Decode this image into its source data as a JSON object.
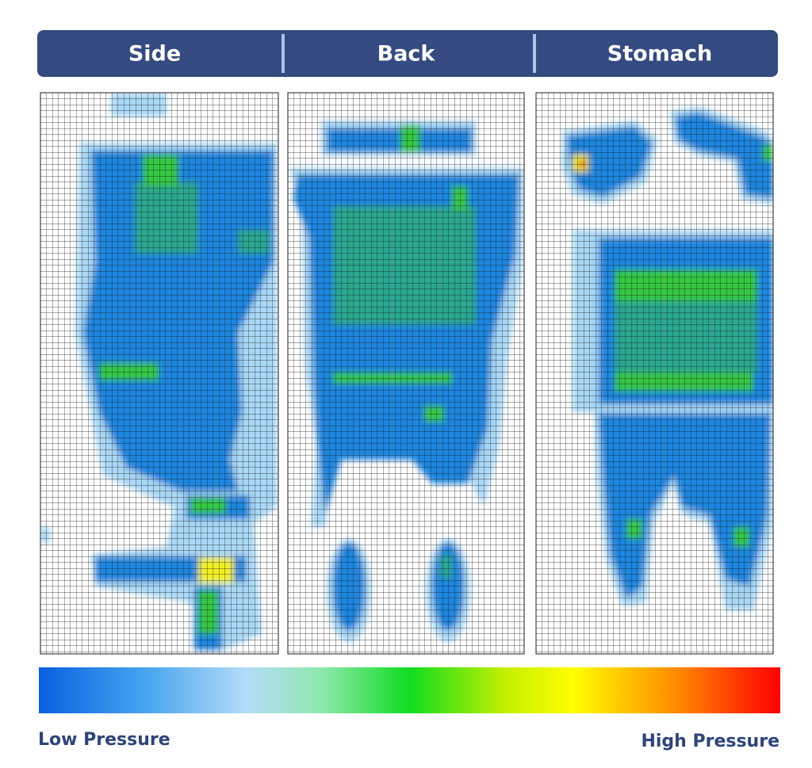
{
  "tabs": [
    "Side",
    "Back",
    "Stomach"
  ],
  "legend": {
    "low": "Low Pressure",
    "high": "High Pressure"
  }
}
